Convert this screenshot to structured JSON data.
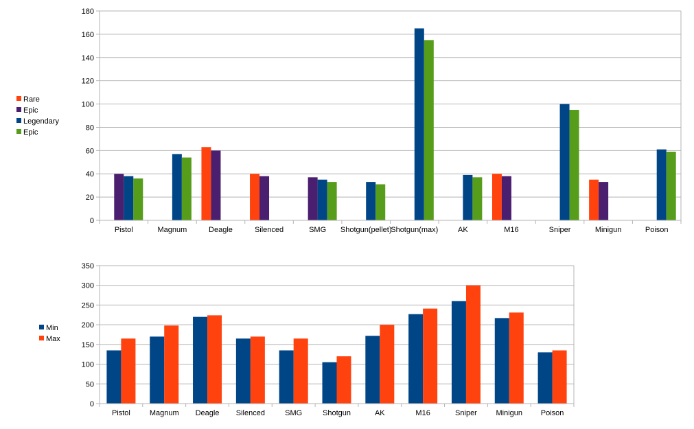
{
  "chart_data": [
    {
      "type": "bar",
      "title": "",
      "xlabel": "",
      "ylabel": "",
      "ylim": [
        0,
        180
      ],
      "yticks": [
        0,
        20,
        40,
        60,
        80,
        100,
        120,
        140,
        160,
        180
      ],
      "grid": true,
      "legend_position": "left",
      "categories": [
        "Pistol",
        "Magnum",
        "Deagle",
        "Silenced",
        "SMG",
        "Shotgun(pellet)",
        "Shotgun(max)",
        "AK",
        "M16",
        "Sniper",
        "Minigun",
        "Poison"
      ],
      "series": [
        {
          "name": "Rare",
          "color": "#ff420e",
          "values": [
            null,
            null,
            63,
            40,
            null,
            null,
            null,
            null,
            40,
            null,
            35,
            null
          ]
        },
        {
          "name": "Epic",
          "color": "#4b1f6f",
          "values": [
            40,
            null,
            60,
            38,
            37,
            null,
            null,
            null,
            38,
            null,
            33,
            null
          ]
        },
        {
          "name": "Legendary",
          "color": "#004586",
          "values": [
            38,
            57,
            null,
            null,
            35,
            33,
            165,
            39,
            null,
            100,
            null,
            61
          ]
        },
        {
          "name": "Epic",
          "color": "#579d1c",
          "values": [
            36,
            54,
            null,
            null,
            33,
            31,
            155,
            37,
            null,
            95,
            null,
            59
          ]
        }
      ]
    },
    {
      "type": "bar",
      "title": "",
      "xlabel": "",
      "ylabel": "",
      "ylim": [
        0,
        350
      ],
      "yticks": [
        0,
        50,
        100,
        150,
        200,
        250,
        300,
        350
      ],
      "grid": true,
      "legend_position": "left",
      "categories": [
        "Pistol",
        "Magnum",
        "Deagle",
        "Silenced",
        "SMG",
        "Shotgun",
        "AK",
        "M16",
        "Sniper",
        "Minigun",
        "Poison"
      ],
      "series": [
        {
          "name": "Min",
          "color": "#004586",
          "values": [
            135,
            170,
            220,
            165,
            135,
            105,
            172,
            227,
            260,
            217,
            130
          ]
        },
        {
          "name": "Max",
          "color": "#ff420e",
          "values": [
            165,
            198,
            224,
            170,
            165,
            120,
            200,
            241,
            300,
            231,
            135
          ]
        }
      ]
    }
  ]
}
